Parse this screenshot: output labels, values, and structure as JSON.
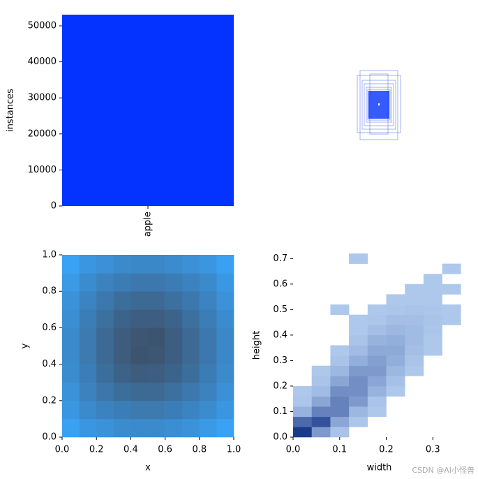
{
  "chart_data": [
    {
      "type": "bar",
      "ylabel": "instances",
      "categories": [
        "apple"
      ],
      "values": [
        53100
      ],
      "color": "#0433ff",
      "ylim": [
        0,
        53100
      ],
      "yticks": [
        0,
        10000,
        20000,
        30000,
        40000,
        50000
      ]
    },
    {
      "type": "heatmap",
      "xlabel": "x",
      "ylabel": "y",
      "colors": [
        "#3aa2f4",
        "#3d5470"
      ],
      "xlim": [
        0,
        1
      ],
      "ylim": [
        0,
        1
      ],
      "xticks": [
        {
          "value": 0,
          "label": "0.0"
        },
        0.2,
        0.4,
        0.6,
        0.8,
        {
          "value": 1,
          "label": "1.0"
        }
      ],
      "yticks": [
        {
          "value": 0,
          "label": "0.0"
        },
        0.2,
        0.4,
        0.6,
        0.8,
        {
          "value": 1,
          "label": "1.0"
        }
      ],
      "xbins": [
        0,
        0.1,
        0.2,
        0.3,
        0.4,
        0.5,
        0.6,
        0.7,
        0.8,
        0.9,
        1
      ],
      "ybins": [
        0,
        0.1,
        0.2,
        0.3,
        0.4,
        0.5,
        0.6,
        0.7,
        0.8,
        0.9,
        1
      ],
      "counts": [
        [
          55,
          60,
          62,
          65,
          66,
          66,
          64,
          62,
          58,
          54
        ],
        [
          60,
          66,
          70,
          72,
          74,
          74,
          72,
          69,
          65,
          60
        ],
        [
          62,
          70,
          76,
          80,
          82,
          82,
          79,
          75,
          70,
          63
        ],
        [
          65,
          72,
          80,
          86,
          89,
          88,
          85,
          80,
          73,
          66
        ],
        [
          66,
          74,
          82,
          89,
          93,
          92,
          88,
          82,
          75,
          67
        ],
        [
          66,
          74,
          82,
          89,
          92,
          93,
          88,
          82,
          75,
          67
        ],
        [
          64,
          72,
          79,
          85,
          88,
          88,
          85,
          79,
          72,
          65
        ],
        [
          62,
          69,
          75,
          80,
          82,
          82,
          79,
          75,
          69,
          62
        ],
        [
          58,
          65,
          70,
          73,
          75,
          75,
          73,
          70,
          66,
          59
        ],
        [
          54,
          60,
          63,
          66,
          67,
          67,
          65,
          63,
          60,
          55
        ]
      ]
    },
    {
      "type": "heatmap",
      "xlabel": "width",
      "ylabel": "height",
      "colors": [
        "#aec8ec",
        "#1a3a8a"
      ],
      "xlim": [
        0,
        0.37
      ],
      "ylim": [
        0,
        0.72
      ],
      "xticks": [
        {
          "value": 0,
          "label": "0.0"
        },
        0.1,
        0.2,
        0.3
      ],
      "yticks": [
        {
          "value": 0,
          "label": "0.0"
        },
        0.1,
        0.2,
        0.3,
        0.4,
        0.5,
        0.6,
        0.7
      ],
      "xbins": [
        0,
        0.04,
        0.08,
        0.12,
        0.16,
        0.2,
        0.24,
        0.28,
        0.32,
        0.36
      ],
      "ybins": [
        0,
        0.04,
        0.08,
        0.12,
        0.16,
        0.2,
        0.24,
        0.28,
        0.32,
        0.36,
        0.4,
        0.44,
        0.48,
        0.52,
        0.56,
        0.6,
        0.64,
        0.68,
        0.72
      ],
      "counts": [
        [
          60,
          20,
          3,
          0,
          0,
          0,
          0,
          0,
          0
        ],
        [
          40,
          50,
          15,
          2,
          0,
          0,
          0,
          0,
          0
        ],
        [
          10,
          30,
          30,
          8,
          1,
          0,
          0,
          0,
          0
        ],
        [
          2,
          15,
          30,
          20,
          3,
          0,
          0,
          0,
          0
        ],
        [
          1,
          6,
          25,
          25,
          10,
          1,
          0,
          0,
          0
        ],
        [
          0,
          3,
          15,
          25,
          15,
          4,
          0,
          0,
          0
        ],
        [
          0,
          1,
          8,
          20,
          20,
          8,
          1,
          0,
          0
        ],
        [
          0,
          0,
          3,
          12,
          18,
          12,
          3,
          0,
          0
        ],
        [
          0,
          0,
          1,
          6,
          14,
          14,
          5,
          1,
          0
        ],
        [
          0,
          0,
          0,
          3,
          10,
          12,
          6,
          1,
          0
        ],
        [
          0,
          0,
          0,
          1,
          5,
          8,
          6,
          2,
          0
        ],
        [
          0,
          0,
          0,
          1,
          2,
          5,
          5,
          3,
          1
        ],
        [
          0,
          0,
          1,
          0,
          1,
          2,
          3,
          2,
          1
        ],
        [
          0,
          0,
          0,
          0,
          0,
          1,
          1,
          1,
          0
        ],
        [
          0,
          0,
          0,
          0,
          0,
          0,
          1,
          1,
          1
        ],
        [
          0,
          0,
          0,
          0,
          0,
          0,
          0,
          1,
          0
        ],
        [
          0,
          0,
          0,
          0,
          0,
          0,
          0,
          0,
          1
        ],
        [
          0,
          0,
          0,
          1,
          0,
          0,
          0,
          0,
          0
        ]
      ]
    }
  ],
  "watermark": "CSDN @AI小怪兽"
}
